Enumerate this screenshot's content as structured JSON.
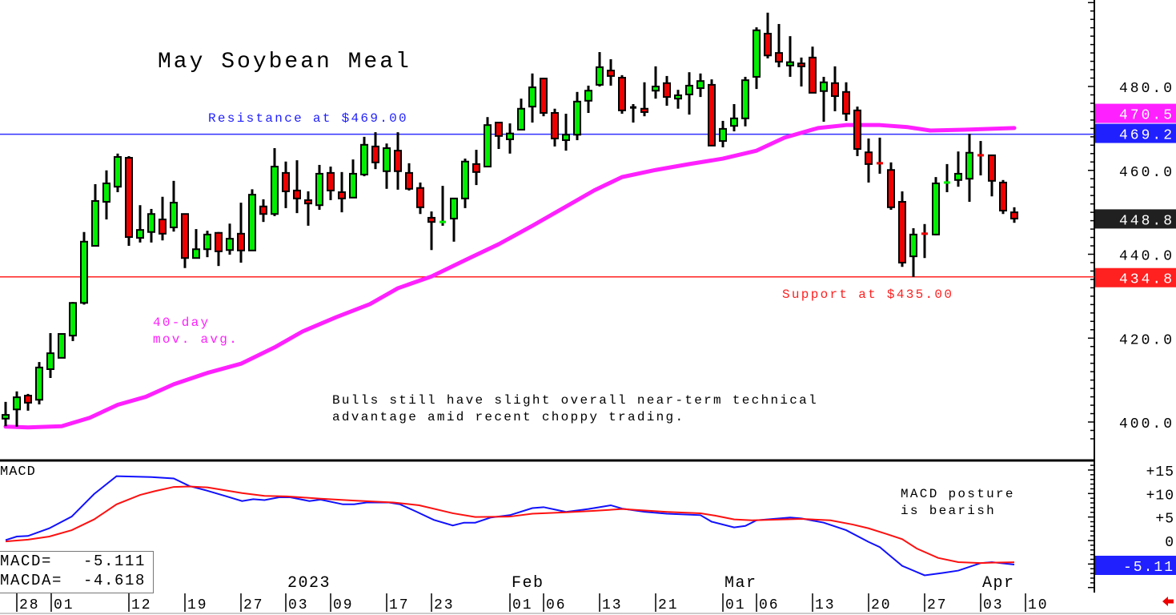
{
  "title": "May Soybean Meal",
  "annotations": {
    "resistance": "Resistance at $469.00",
    "support": "Support at $435.00",
    "ma_line1": "40-day",
    "ma_line2": "mov. avg.",
    "comment_line1": "Bulls still have slight overall near-term technical",
    "comment_line2": "advantage amid recent choppy trading.",
    "macd_title": "MACD",
    "macd_comment_line1": "MACD posture",
    "macd_comment_line2": "is bearish"
  },
  "legend": {
    "macd": "MACD=   -5.111",
    "macda": "MACDA=  -4.618"
  },
  "colors": {
    "up": "#00ee00",
    "down": "#ee0000",
    "ma": "#ff20ff",
    "resistance": "#3030ff",
    "support": "#ff2020",
    "macd": "#1010ff",
    "signal": "#ff1010"
  },
  "icons": {
    "scroll": "red-left-arrow-icon"
  },
  "chart_data": [
    {
      "type": "candlestick",
      "title": "May Soybean Meal",
      "ylim": [
        395,
        500
      ],
      "y_ticks": [
        "480.0",
        "460.0",
        "440.0",
        "420.0",
        "400.0"
      ],
      "y_tick_values": [
        480,
        460,
        440,
        420,
        400
      ],
      "price_tags": [
        {
          "label": "470.5",
          "value": 470.5,
          "color": "#ff20ff"
        },
        {
          "label": "469.2",
          "value": 469.2,
          "color": "#2020ff"
        },
        {
          "label": "448.8",
          "value": 448.8,
          "color": "#202020"
        },
        {
          "label": "434.8",
          "value": 434.8,
          "color": "#ff2020"
        }
      ],
      "resistance": 469.0,
      "support": 435.0,
      "x_ticks": [
        "28",
        "01",
        "12",
        "19",
        "27",
        "03",
        "09",
        "17",
        "23",
        "01",
        "06",
        "13",
        "21",
        "01",
        "06",
        "13",
        "20",
        "27",
        "03",
        "10"
      ],
      "x_months": [
        "2023",
        "Feb",
        "Mar",
        "Apr"
      ],
      "candles_ohlc": [
        [
          400.8,
          404.8,
          399.0,
          401.7
        ],
        [
          403.0,
          407.3,
          398.9,
          405.9
        ],
        [
          406.3,
          406.7,
          402.7,
          404.6
        ],
        [
          405.3,
          414.3,
          404.2,
          413.0
        ],
        [
          412.6,
          421.2,
          410.5,
          416.4
        ],
        [
          415.3,
          421.2,
          415.3,
          421.0
        ],
        [
          420.6,
          428.6,
          419.3,
          428.4
        ],
        [
          428.4,
          445.3,
          428.0,
          443.0
        ],
        [
          442.0,
          456.7,
          442.0,
          452.7
        ],
        [
          452.5,
          460.0,
          448.3,
          456.9
        ],
        [
          456.1,
          464.0,
          454.8,
          463.2
        ],
        [
          463.0,
          463.4,
          442.0,
          444.1
        ],
        [
          443.9,
          451.7,
          442.8,
          445.8
        ],
        [
          445.3,
          450.8,
          442.8,
          449.6
        ],
        [
          448.3,
          453.7,
          443.3,
          444.9
        ],
        [
          446.4,
          457.5,
          445.4,
          452.3
        ],
        [
          449.6,
          449.6,
          436.7,
          439.1
        ],
        [
          439.1,
          446.0,
          439.1,
          441.2
        ],
        [
          441.2,
          445.6,
          439.3,
          444.7
        ],
        [
          445.1,
          445.3,
          437.2,
          440.7
        ],
        [
          441.0,
          447.3,
          439.9,
          443.7
        ],
        [
          444.9,
          452.3,
          438.0,
          440.9
        ],
        [
          440.9,
          455.5,
          440.9,
          454.2
        ],
        [
          451.4,
          453.1,
          447.7,
          449.6
        ],
        [
          449.6,
          465.3,
          449.1,
          460.9
        ],
        [
          459.4,
          462.1,
          451.0,
          455.0
        ],
        [
          455.2,
          462.4,
          449.8,
          453.3
        ],
        [
          452.9,
          455.0,
          446.8,
          452.1
        ],
        [
          451.7,
          461.3,
          450.6,
          459.2
        ],
        [
          459.4,
          460.9,
          452.9,
          455.2
        ],
        [
          454.8,
          459.6,
          450.0,
          453.3
        ],
        [
          453.5,
          462.6,
          453.5,
          459.2
        ],
        [
          459.0,
          468.0,
          458.6,
          466.1
        ],
        [
          465.7,
          469.1,
          460.3,
          461.9
        ],
        [
          459.8,
          466.4,
          455.6,
          465.3
        ],
        [
          464.7,
          469.1,
          455.4,
          459.8
        ],
        [
          459.4,
          461.7,
          455.2,
          455.6
        ],
        [
          455.8,
          457.1,
          449.6,
          451.2
        ],
        [
          448.7,
          450.2,
          441.0,
          447.7
        ],
        [
          447.7,
          456.3,
          446.8,
          447.7
        ],
        [
          448.5,
          453.3,
          443.0,
          453.3
        ],
        [
          453.3,
          462.8,
          451.0,
          462.1
        ],
        [
          461.5,
          464.9,
          456.5,
          459.6
        ],
        [
          460.9,
          472.7,
          460.9,
          470.8
        ],
        [
          471.4,
          471.4,
          465.1,
          468.2
        ],
        [
          467.4,
          471.2,
          464.0,
          468.8
        ],
        [
          469.7,
          477.1,
          469.7,
          474.7
        ],
        [
          475.2,
          483.1,
          471.4,
          479.8
        ],
        [
          481.9,
          482.1,
          472.9,
          473.7
        ],
        [
          473.7,
          474.7,
          465.7,
          467.6
        ],
        [
          467.2,
          473.5,
          464.7,
          468.5
        ],
        [
          468.5,
          478.7,
          467.2,
          476.4
        ],
        [
          476.6,
          480.2,
          473.7,
          479.0
        ],
        [
          480.4,
          488.2,
          480.0,
          484.6
        ],
        [
          483.8,
          486.5,
          480.2,
          482.5
        ],
        [
          482.1,
          482.7,
          473.5,
          474.3
        ],
        [
          475.0,
          475.8,
          471.4,
          475.0
        ],
        [
          474.7,
          481.0,
          472.9,
          473.9
        ],
        [
          479.0,
          484.8,
          477.1,
          480.0
        ],
        [
          480.8,
          482.5,
          475.4,
          477.5
        ],
        [
          477.1,
          479.2,
          474.7,
          477.9
        ],
        [
          478.1,
          483.4,
          473.3,
          480.2
        ],
        [
          479.6,
          483.1,
          477.5,
          481.3
        ],
        [
          480.4,
          481.7,
          465.9,
          465.9
        ],
        [
          467.0,
          471.8,
          465.5,
          469.9
        ],
        [
          470.6,
          475.8,
          469.3,
          472.4
        ],
        [
          472.4,
          482.3,
          470.5,
          481.5
        ],
        [
          482.3,
          494.1,
          479.4,
          493.4
        ],
        [
          492.6,
          497.6,
          486.7,
          487.4
        ],
        [
          488.0,
          494.9,
          484.6,
          485.9
        ],
        [
          485.0,
          492.0,
          482.3,
          485.8
        ],
        [
          485.5,
          486.9,
          480.0,
          484.8
        ],
        [
          486.9,
          489.5,
          478.5,
          478.5
        ],
        [
          478.9,
          482.3,
          471.6,
          481.0
        ],
        [
          480.8,
          484.8,
          474.1,
          477.7
        ],
        [
          478.7,
          481.0,
          471.8,
          473.5
        ],
        [
          474.3,
          475.2,
          463.4,
          465.1
        ],
        [
          464.3,
          467.6,
          457.1,
          461.5
        ],
        [
          461.7,
          467.8,
          459.2,
          461.7
        ],
        [
          460.1,
          461.9,
          450.6,
          451.2
        ],
        [
          452.5,
          455.0,
          437.0,
          438.0
        ],
        [
          439.5,
          446.2,
          434.6,
          444.7
        ],
        [
          444.9,
          447.2,
          439.1,
          444.9
        ],
        [
          444.7,
          458.4,
          444.5,
          456.9
        ],
        [
          457.1,
          461.5,
          454.8,
          457.1
        ],
        [
          457.7,
          464.5,
          456.1,
          459.2
        ],
        [
          458.0,
          468.7,
          452.5,
          464.2
        ],
        [
          463.6,
          467.0,
          458.8,
          463.6
        ],
        [
          463.6,
          463.6,
          453.8,
          457.5
        ],
        [
          457.1,
          457.7,
          449.6,
          450.4
        ],
        [
          450.0,
          451.2,
          447.5,
          448.5
        ]
      ],
      "moving_average_40day": [
        [
          0,
          398.9
        ],
        [
          2,
          398.7
        ],
        [
          5,
          399.0
        ],
        [
          7.5,
          401.0
        ],
        [
          10,
          404.1
        ],
        [
          12.5,
          406.0
        ],
        [
          15,
          409.0
        ],
        [
          18,
          411.7
        ],
        [
          21,
          413.9
        ],
        [
          24,
          417.8
        ],
        [
          26.5,
          421.6
        ],
        [
          29.5,
          425.0
        ],
        [
          32.5,
          428.1
        ],
        [
          35,
          431.9
        ],
        [
          38,
          434.7
        ],
        [
          41,
          438.6
        ],
        [
          44,
          442.4
        ],
        [
          47,
          446.8
        ],
        [
          49.5,
          450.6
        ],
        [
          52.5,
          455.2
        ],
        [
          55,
          458.4
        ],
        [
          58,
          460.1
        ],
        [
          61,
          461.5
        ],
        [
          64,
          462.8
        ],
        [
          67,
          464.7
        ],
        [
          69.5,
          467.8
        ],
        [
          72.5,
          470.1
        ],
        [
          75,
          470.8
        ],
        [
          78,
          470.8
        ],
        [
          80.5,
          470.3
        ],
        [
          82.5,
          469.5
        ],
        [
          85.5,
          469.7
        ],
        [
          90,
          470.1
        ]
      ]
    },
    {
      "type": "line",
      "title": "MACD",
      "ylim": [
        -10,
        17
      ],
      "y_ticks": [
        "+15",
        "+10",
        "+5",
        "0"
      ],
      "y_tick_values": [
        15,
        10,
        5,
        0
      ],
      "value_tags": [
        {
          "label": "-5.11",
          "value": -5.11,
          "color": "#2020ff"
        }
      ],
      "series": [
        {
          "name": "MACD",
          "points": [
            [
              0,
              0.1
            ],
            [
              1,
              0.85
            ],
            [
              2,
              0.97
            ],
            [
              3.9,
              2.6
            ],
            [
              5.9,
              5.1
            ],
            [
              7.9,
              9.9
            ],
            [
              9.9,
              13.7
            ],
            [
              13,
              13.5
            ],
            [
              15,
              13.2
            ],
            [
              16.4,
              11.6
            ],
            [
              18,
              10.6
            ],
            [
              19.7,
              9.4
            ],
            [
              21.1,
              8.4
            ],
            [
              22.1,
              8.8
            ],
            [
              23.1,
              8.6
            ],
            [
              24.4,
              9.2
            ],
            [
              25.4,
              9.2
            ],
            [
              27.1,
              8.4
            ],
            [
              28.1,
              8.7
            ],
            [
              30.1,
              7.7
            ],
            [
              31.1,
              7.7
            ],
            [
              32.2,
              8.1
            ],
            [
              34.2,
              8.1
            ],
            [
              35.2,
              7.7
            ],
            [
              36.6,
              6.2
            ],
            [
              38.2,
              4.4
            ],
            [
              39.9,
              3.2
            ],
            [
              40.9,
              3.8
            ],
            [
              41.9,
              3.8
            ],
            [
              43.3,
              4.9
            ],
            [
              45,
              5.4
            ],
            [
              47,
              6.9
            ],
            [
              48,
              7.1
            ],
            [
              50,
              6.1
            ],
            [
              52,
              6.7
            ],
            [
              54,
              7.5
            ],
            [
              55,
              6.8
            ],
            [
              57,
              6.1
            ],
            [
              59,
              5.7
            ],
            [
              62,
              5.4
            ],
            [
              63,
              4.0
            ],
            [
              65,
              2.8
            ],
            [
              66,
              3.1
            ],
            [
              67,
              4.3
            ],
            [
              70,
              4.9
            ],
            [
              71,
              4.7
            ],
            [
              73,
              3.8
            ],
            [
              75,
              2.2
            ],
            [
              77,
              -0.3
            ],
            [
              78,
              -1.4
            ],
            [
              79,
              -3.4
            ],
            [
              80,
              -5.4
            ],
            [
              82,
              -7.4
            ],
            [
              83.6,
              -6.9
            ],
            [
              85,
              -6.4
            ],
            [
              87,
              -4.8
            ],
            [
              88,
              -4.6
            ],
            [
              90,
              -5.111
            ]
          ]
        },
        {
          "name": "MACDA",
          "points": [
            [
              0,
              -0.2
            ],
            [
              2,
              0.2
            ],
            [
              3.9,
              0.85
            ],
            [
              5.9,
              2.2
            ],
            [
              7.9,
              4.5
            ],
            [
              9.9,
              7.7
            ],
            [
              12,
              9.7
            ],
            [
              13.3,
              10.5
            ],
            [
              15,
              11.4
            ],
            [
              16.4,
              11.5
            ],
            [
              18,
              11.3
            ],
            [
              21.1,
              10.1
            ],
            [
              23.1,
              9.5
            ],
            [
              25.1,
              9.4
            ],
            [
              28.1,
              8.9
            ],
            [
              31.1,
              8.5
            ],
            [
              34.6,
              8.1
            ],
            [
              36.9,
              7.5
            ],
            [
              39.9,
              5.8
            ],
            [
              41.9,
              5.0
            ],
            [
              45,
              5.1
            ],
            [
              47,
              5.7
            ],
            [
              50,
              6.0
            ],
            [
              52.4,
              6.3
            ],
            [
              55,
              6.7
            ],
            [
              59,
              6.1
            ],
            [
              62,
              5.8
            ],
            [
              63.3,
              5.3
            ],
            [
              65,
              4.5
            ],
            [
              66.6,
              4.3
            ],
            [
              71,
              4.6
            ],
            [
              73.6,
              4.3
            ],
            [
              75.6,
              3.4
            ],
            [
              77,
              2.6
            ],
            [
              78.6,
              1.4
            ],
            [
              80,
              0.3
            ],
            [
              81.3,
              -1.7
            ],
            [
              83.2,
              -3.7
            ],
            [
              85,
              -4.6
            ],
            [
              87,
              -4.8
            ],
            [
              88,
              -4.7
            ],
            [
              90,
              -4.618
            ]
          ]
        }
      ]
    }
  ]
}
